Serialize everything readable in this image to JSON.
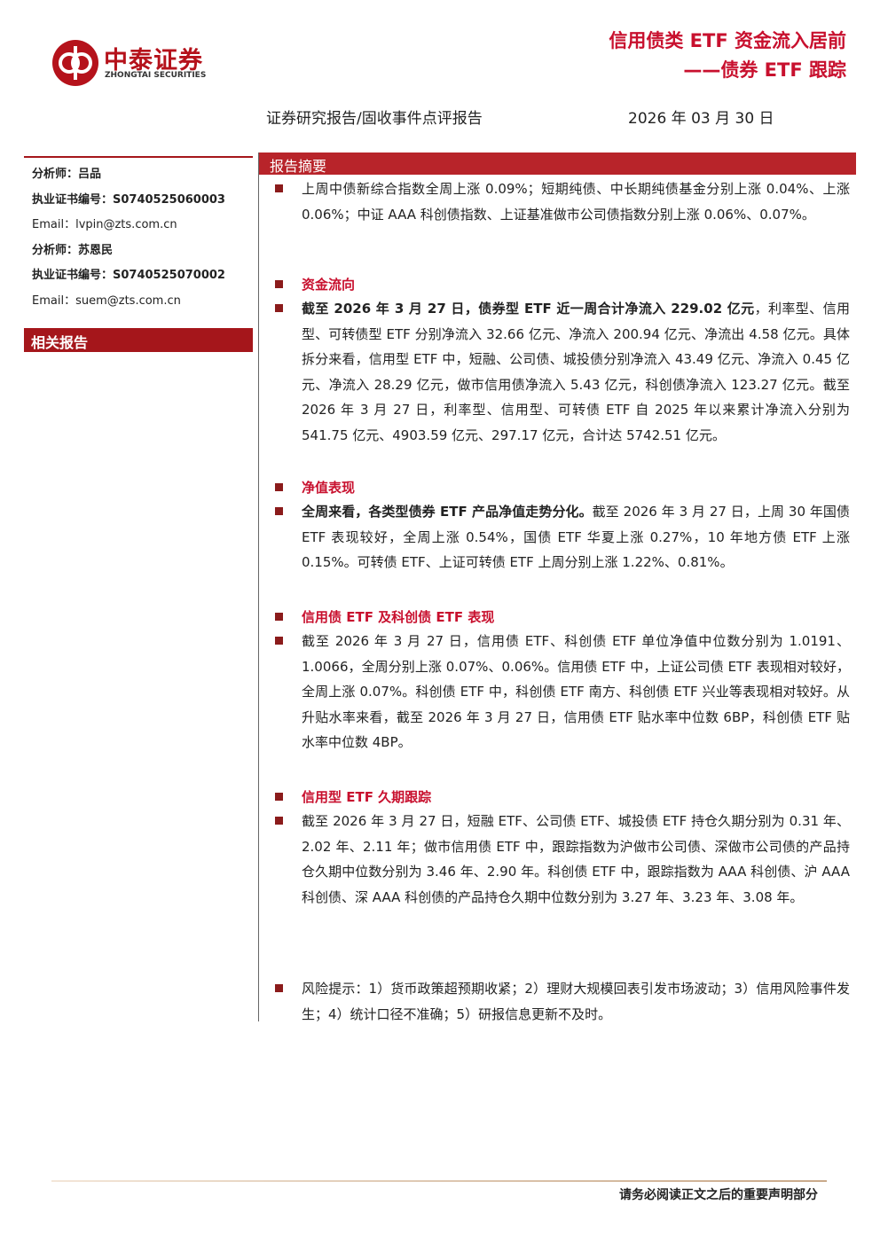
{
  "header": {
    "logo_cn": "中泰证券",
    "logo_en": "ZHONGTAI SECURITIES",
    "title": "信用债类 ETF 资金流入居前",
    "subtitle": "——债券 ETF 跟踪",
    "report_type": "证券研究报告/固收事件点评报告",
    "date": "2026 年 03 月 30 日"
  },
  "sidebar": {
    "analysts": [
      {
        "label": "分析师：",
        "value": "吕品"
      },
      {
        "label": "执业证书编号：",
        "value": "S0740525060003"
      },
      {
        "label": "Email：",
        "value": "lvpin@zts.com.cn"
      },
      {
        "label": "分析师：",
        "value": "苏恩民"
      },
      {
        "label": "执业证书编号：",
        "value": "S0740525070002"
      },
      {
        "label": "Email：",
        "value": "suem@zts.com.cn"
      }
    ],
    "related_reports": "相关报告"
  },
  "summary": {
    "heading": "报告摘要",
    "intro": "上周中债新综合指数全周上涨 0.09%；短期纯债、中长期纯债基金分别上涨 0.04%、上涨 0.06%；中证 AAA 科创债指数、上证基准做市公司债指数分别上涨 0.06%、0.07%。",
    "sections": [
      {
        "heading": "资金流向",
        "lead": "截至 2026 年 3 月 27 日，债券型 ETF 近一周合计净流入 229.02 亿元",
        "text": "，利率型、信用型、可转债型 ETF 分别净流入 32.66 亿元、净流入 200.94 亿元、净流出 4.58 亿元。具体拆分来看，信用型 ETF 中，短融、公司债、城投债分别净流入 43.49 亿元、净流入 0.45 亿元、净流入 28.29 亿元，做市信用债净流入 5.43 亿元，科创债净流入 123.27 亿元。截至 2026 年 3 月 27 日，利率型、信用型、可转债 ETF 自 2025 年以来累计净流入分别为 541.75 亿元、4903.59 亿元、297.17 亿元，合计达 5742.51 亿元。"
      },
      {
        "heading": "净值表现",
        "lead": "全周来看，各类型债券 ETF 产品净值走势分化。",
        "text": "截至 2026 年 3 月 27 日，上周 30 年国债 ETF 表现较好，全周上涨 0.54%，国债 ETF 华夏上涨 0.27%，10 年地方债 ETF 上涨 0.15%。可转债 ETF、上证可转债 ETF 上周分别上涨 1.22%、0.81%。"
      },
      {
        "heading": "信用债 ETF 及科创债 ETF 表现",
        "text": "截至 2026 年 3 月 27 日，信用债 ETF、科创债 ETF 单位净值中位数分别为 1.0191、1.0066，全周分别上涨 0.07%、0.06%。信用债 ETF 中，上证公司债 ETF 表现相对较好，全周上涨 0.07%。科创债 ETF 中，科创债 ETF 南方、科创债 ETF 兴业等表现相对较好。从升贴水率来看，截至 2026 年 3 月 27 日，信用债 ETF 贴水率中位数 6BP，科创债 ETF 贴水率中位数 4BP。"
      },
      {
        "heading": "信用型 ETF 久期跟踪",
        "text": "截至 2026 年 3 月 27 日，短融 ETF、公司债 ETF、城投债 ETF 持仓久期分别为 0.31 年、2.02 年、2.11 年；做市信用债 ETF 中，跟踪指数为沪做市公司债、深做市公司债的产品持仓久期中位数分别为 3.46 年、2.90 年。科创债 ETF 中，跟踪指数为 AAA 科创债、沪 AAA 科创债、深 AAA 科创债的产品持仓久期中位数分别为 3.27 年、3.23 年、3.08 年。"
      }
    ],
    "risk": "风险提示：1）货币政策超预期收紧；2）理财大规模回表引发市场波动；3）信用风险事件发生；4）统计口径不准确；5）研报信息更新不及时。"
  },
  "footer": "请务必阅读正文之后的重要声明部分"
}
